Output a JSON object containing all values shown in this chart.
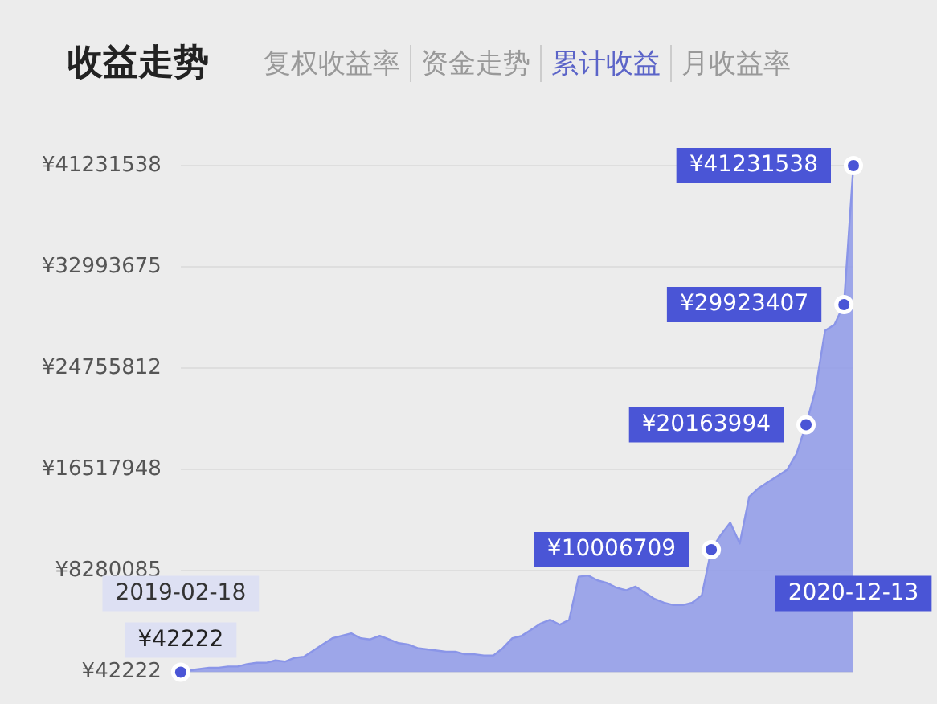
{
  "chart_data": {
    "type": "area",
    "title": "收益走势",
    "annotations": [
      "复权收益率",
      "资金走势",
      "累计收益",
      "月收益率"
    ],
    "categories": [
      "2019-02-18",
      null,
      null,
      null,
      null,
      null,
      null,
      null,
      null,
      null,
      null,
      null,
      null,
      null,
      null,
      null,
      null,
      null,
      null,
      null,
      null,
      null,
      null,
      null,
      null,
      null,
      null,
      null,
      null,
      null,
      null,
      null,
      null,
      null,
      null,
      null,
      null,
      null,
      null,
      null,
      null,
      null,
      null,
      null,
      null,
      null,
      null,
      null,
      null,
      null,
      null,
      null,
      null,
      null,
      null,
      null,
      null,
      null,
      null,
      null,
      null,
      null,
      null,
      null,
      null,
      null,
      null,
      null,
      null,
      null,
      null,
      "2020-12-13"
    ],
    "series": [
      {
        "color": "#8a95e8",
        "values": [
          42222,
          200000,
          300000,
          400000,
          400000,
          500000,
          500000,
          700000,
          800000,
          800000,
          1000000,
          900000,
          1200000,
          1300000,
          1800000,
          2300000,
          2800000,
          3000000,
          3200000,
          2800000,
          2700000,
          3000000,
          2700000,
          2400000,
          2300000,
          2000000,
          1900000,
          1800000,
          1700000,
          1700000,
          1500000,
          1500000,
          1400000,
          1400000,
          2000000,
          2800000,
          3000000,
          3500000,
          4000000,
          4300000,
          3900000,
          4300000,
          7800000,
          7900000,
          7500000,
          7300000,
          6900000,
          6700000,
          7000000,
          6500000,
          6000000,
          5700000,
          5500000,
          5500000,
          5700000,
          6300000,
          10006709,
          11200000,
          12200000,
          10500000,
          14300000,
          15000000,
          15500000,
          16000000,
          16500000,
          17800000,
          20163994,
          23000000,
          27800000,
          28300000,
          29923407,
          41231538
        ],
        "value_labels": [
          "¥42222",
          null,
          null,
          null,
          null,
          null,
          null,
          null,
          null,
          null,
          null,
          null,
          null,
          null,
          null,
          null,
          null,
          null,
          null,
          null,
          null,
          null,
          null,
          null,
          null,
          null,
          null,
          null,
          null,
          null,
          null,
          null,
          null,
          null,
          null,
          null,
          null,
          null,
          null,
          null,
          null,
          null,
          null,
          null,
          null,
          null,
          null,
          null,
          null,
          null,
          null,
          null,
          null,
          null,
          null,
          null,
          "¥10006709",
          null,
          null,
          null,
          null,
          null,
          null,
          null,
          null,
          null,
          "¥20163994",
          null,
          null,
          null,
          "¥29923407",
          "¥41231538"
        ]
      }
    ],
    "ylim": [
      42222,
      41231538
    ],
    "yticks": [
      {
        "value": 42222,
        "label": "¥42222"
      },
      {
        "value": 8280085,
        "label": "¥8280085"
      },
      {
        "value": 16517948,
        "label": "¥16517948"
      },
      {
        "value": 24755812,
        "label": "¥24755812"
      },
      {
        "value": 32993675,
        "label": "¥32993675"
      },
      {
        "value": 41231538,
        "label": "¥41231538"
      }
    ],
    "grid": "y",
    "marker": "none",
    "legend": false
  }
}
